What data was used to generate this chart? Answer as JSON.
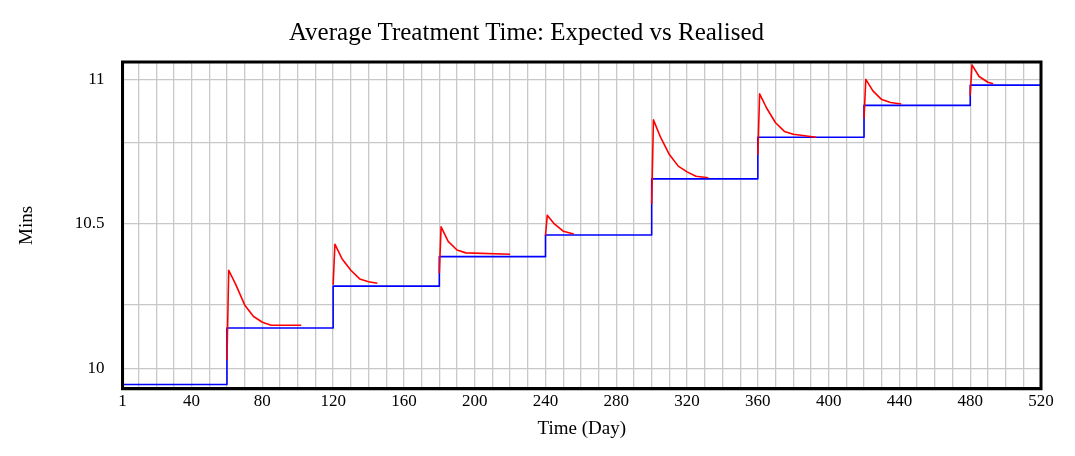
{
  "chart_data": {
    "type": "line",
    "title": "Average Treatment Time: Expected vs Realised",
    "xlabel": "Time (Day)",
    "ylabel": "Mins",
    "xlim": [
      1,
      520
    ],
    "ylim": [
      9.93,
      11.06
    ],
    "xticks": [
      1,
      {
        "value": 10,
        "label": null
      },
      {
        "value": 20,
        "label": null
      },
      {
        "value": 30,
        "label": null
      },
      40,
      {
        "value": 50,
        "label": null
      },
      {
        "value": 60,
        "label": null
      },
      {
        "value": 70,
        "label": null
      },
      80,
      {
        "value": 90,
        "label": null
      },
      {
        "value": 100,
        "label": null
      },
      {
        "value": 110,
        "label": null
      },
      120,
      {
        "value": 130,
        "label": null
      },
      {
        "value": 140,
        "label": null
      },
      {
        "value": 150,
        "label": null
      },
      160,
      {
        "value": 170,
        "label": null
      },
      {
        "value": 180,
        "label": null
      },
      {
        "value": 190,
        "label": null
      },
      200,
      {
        "value": 210,
        "label": null
      },
      {
        "value": 220,
        "label": null
      },
      {
        "value": 230,
        "label": null
      },
      240,
      {
        "value": 250,
        "label": null
      },
      {
        "value": 260,
        "label": null
      },
      {
        "value": 270,
        "label": null
      },
      280,
      {
        "value": 290,
        "label": null
      },
      {
        "value": 300,
        "label": null
      },
      {
        "value": 310,
        "label": null
      },
      320,
      {
        "value": 330,
        "label": null
      },
      {
        "value": 340,
        "label": null
      },
      {
        "value": 350,
        "label": null
      },
      360,
      {
        "value": 370,
        "label": null
      },
      {
        "value": 380,
        "label": null
      },
      {
        "value": 390,
        "label": null
      },
      400,
      {
        "value": 410,
        "label": null
      },
      {
        "value": 420,
        "label": null
      },
      {
        "value": 430,
        "label": null
      },
      440,
      {
        "value": 450,
        "label": null
      },
      {
        "value": 460,
        "label": null
      },
      {
        "value": 470,
        "label": null
      },
      480,
      {
        "value": 490,
        "label": null
      },
      {
        "value": 500,
        "label": null
      },
      {
        "value": 510,
        "label": null
      },
      520
    ],
    "yticks": [
      10,
      {
        "value": 10.22,
        "label": null
      },
      10.5,
      {
        "value": 10.78,
        "label": null
      },
      11
    ],
    "grid": true,
    "legend": false,
    "series": [
      {
        "type": "step",
        "color": "#0000ff",
        "x": [
          1,
          60,
          120,
          180,
          240,
          300,
          360,
          420,
          480,
          520
        ],
        "values": [
          9.945,
          10.14,
          10.285,
          10.387,
          10.462,
          10.656,
          10.8,
          10.91,
          10.98,
          10.98
        ]
      },
      {
        "color": "#ff0000",
        "x": [
          60,
          61,
          65,
          70,
          75,
          80,
          85,
          90,
          102,
          103,
          120,
          121,
          125,
          130,
          135,
          140,
          145,
          146,
          180,
          181,
          185,
          190,
          195,
          220,
          221,
          240,
          241,
          245,
          250,
          256,
          257,
          300,
          301,
          305,
          310,
          315,
          320,
          325,
          332,
          333,
          360,
          361,
          365,
          370,
          375,
          380,
          393,
          394,
          420,
          421,
          425,
          430,
          435,
          441,
          442,
          480,
          481,
          485,
          490,
          493
        ],
        "values": [
          10.03,
          10.34,
          10.29,
          10.22,
          10.18,
          10.16,
          10.15,
          10.15,
          10.15,
          null,
          10.29,
          10.43,
          10.38,
          10.34,
          10.31,
          10.3,
          10.295,
          null,
          10.33,
          10.49,
          10.44,
          10.41,
          10.4,
          10.395,
          null,
          10.46,
          10.53,
          10.5,
          10.475,
          10.465,
          null,
          10.57,
          10.86,
          10.8,
          10.74,
          10.7,
          10.68,
          10.665,
          10.66,
          null,
          10.74,
          10.95,
          10.9,
          10.85,
          10.82,
          10.81,
          10.8,
          null,
          10.865,
          11.0,
          10.96,
          10.93,
          10.92,
          10.915,
          null,
          10.945,
          11.05,
          11.01,
          10.99,
          10.985
        ]
      }
    ]
  }
}
